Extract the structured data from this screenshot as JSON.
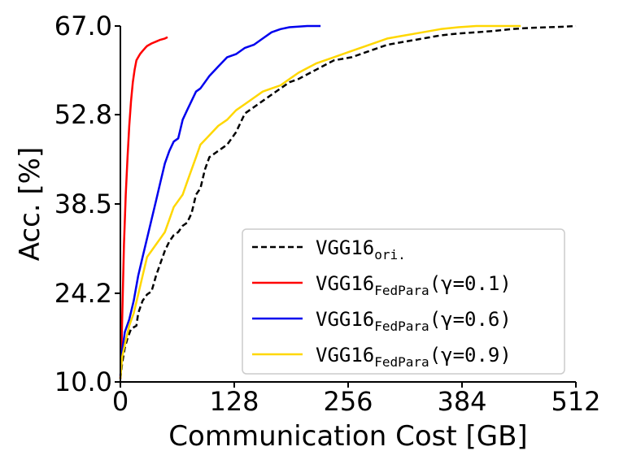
{
  "chart_data": {
    "type": "line",
    "xlabel": "Communication Cost [GB]",
    "ylabel": "Acc. [%]",
    "xlim": [
      0,
      512
    ],
    "ylim": [
      10.0,
      67.0
    ],
    "xticks": [
      "0",
      "128",
      "256",
      "384",
      "512"
    ],
    "xtick_values": [
      0,
      128,
      256,
      384,
      512
    ],
    "yticks": [
      "10.0",
      "24.2",
      "38.5",
      "52.8",
      "67.0"
    ],
    "ytick_values": [
      10.0,
      24.2,
      38.5,
      52.8,
      67.0
    ],
    "grid": false,
    "legend_position": "bottom-right",
    "series": [
      {
        "key": "ori",
        "name_main": "VGG16",
        "name_sub": "ori.",
        "name_suffix": "",
        "color": "#000000",
        "dash": "dashed",
        "points": [
          [
            0,
            10.5
          ],
          [
            2,
            13
          ],
          [
            5,
            15.5
          ],
          [
            8,
            17
          ],
          [
            12,
            18.5
          ],
          [
            18,
            19
          ],
          [
            20,
            21
          ],
          [
            25,
            23
          ],
          [
            30,
            24
          ],
          [
            35,
            24.5
          ],
          [
            40,
            27
          ],
          [
            45,
            29
          ],
          [
            50,
            31
          ],
          [
            55,
            32.5
          ],
          [
            60,
            33.5
          ],
          [
            65,
            34
          ],
          [
            70,
            35
          ],
          [
            75,
            35.5
          ],
          [
            80,
            37
          ],
          [
            85,
            40
          ],
          [
            90,
            41
          ],
          [
            95,
            44
          ],
          [
            100,
            46
          ],
          [
            110,
            47
          ],
          [
            120,
            48
          ],
          [
            130,
            50
          ],
          [
            140,
            53
          ],
          [
            150,
            54
          ],
          [
            160,
            55
          ],
          [
            170,
            56
          ],
          [
            180,
            57
          ],
          [
            190,
            58
          ],
          [
            200,
            58.5
          ],
          [
            220,
            60
          ],
          [
            240,
            61.5
          ],
          [
            260,
            62
          ],
          [
            280,
            63
          ],
          [
            300,
            64
          ],
          [
            320,
            64.5
          ],
          [
            340,
            65
          ],
          [
            360,
            65.5
          ],
          [
            380,
            65.8
          ],
          [
            400,
            66
          ],
          [
            420,
            66.2
          ],
          [
            440,
            66.5
          ],
          [
            460,
            66.7
          ],
          [
            480,
            66.8
          ],
          [
            500,
            66.9
          ],
          [
            512,
            67
          ]
        ]
      },
      {
        "key": "p01",
        "name_main": "VGG16",
        "name_sub": "FedPara",
        "name_suffix": "(γ=0.1)",
        "color": "#ff0000",
        "dash": "solid",
        "points": [
          [
            0,
            10.5
          ],
          [
            1,
            14
          ],
          [
            2,
            20
          ],
          [
            3,
            26
          ],
          [
            4,
            32
          ],
          [
            5,
            36
          ],
          [
            6,
            40
          ],
          [
            8,
            46
          ],
          [
            10,
            51
          ],
          [
            12,
            55
          ],
          [
            14,
            58
          ],
          [
            16,
            60
          ],
          [
            18,
            61.5
          ],
          [
            20,
            62
          ],
          [
            22,
            62.5
          ],
          [
            25,
            63
          ],
          [
            28,
            63.5
          ],
          [
            30,
            63.8
          ],
          [
            35,
            64.2
          ],
          [
            40,
            64.5
          ],
          [
            45,
            64.8
          ],
          [
            50,
            65
          ],
          [
            53,
            65.2
          ]
        ]
      },
      {
        "key": "p06",
        "name_main": "VGG16",
        "name_sub": "FedPara",
        "name_suffix": "(γ=0.6)",
        "color": "#0000ee",
        "dash": "solid",
        "points": [
          [
            0,
            11
          ],
          [
            1,
            13
          ],
          [
            2,
            15
          ],
          [
            5,
            18
          ],
          [
            10,
            20
          ],
          [
            15,
            23
          ],
          [
            20,
            27
          ],
          [
            25,
            30
          ],
          [
            30,
            33
          ],
          [
            35,
            36
          ],
          [
            40,
            39
          ],
          [
            45,
            42
          ],
          [
            50,
            45
          ],
          [
            55,
            47
          ],
          [
            60,
            48.5
          ],
          [
            65,
            49
          ],
          [
            70,
            52
          ],
          [
            75,
            53.5
          ],
          [
            80,
            55
          ],
          [
            85,
            56.5
          ],
          [
            90,
            57
          ],
          [
            100,
            59
          ],
          [
            110,
            60.5
          ],
          [
            120,
            62
          ],
          [
            130,
            62.5
          ],
          [
            140,
            63.5
          ],
          [
            150,
            64
          ],
          [
            160,
            65
          ],
          [
            170,
            66
          ],
          [
            180,
            66.5
          ],
          [
            190,
            66.8
          ],
          [
            200,
            66.9
          ],
          [
            210,
            67
          ],
          [
            225,
            67
          ]
        ]
      },
      {
        "key": "p09",
        "name_main": "VGG16",
        "name_sub": "FedPara",
        "name_suffix": "(γ=0.9)",
        "color": "#ffd700",
        "dash": "solid",
        "points": [
          [
            0,
            10.5
          ],
          [
            2,
            14
          ],
          [
            5,
            16
          ],
          [
            10,
            19
          ],
          [
            15,
            21
          ],
          [
            20,
            24
          ],
          [
            25,
            27
          ],
          [
            30,
            30
          ],
          [
            35,
            31
          ],
          [
            40,
            32
          ],
          [
            45,
            33
          ],
          [
            50,
            34
          ],
          [
            55,
            36
          ],
          [
            60,
            38
          ],
          [
            65,
            39
          ],
          [
            70,
            40
          ],
          [
            75,
            42
          ],
          [
            80,
            44
          ],
          [
            85,
            46
          ],
          [
            90,
            48
          ],
          [
            100,
            49.5
          ],
          [
            110,
            51
          ],
          [
            120,
            52
          ],
          [
            130,
            53.5
          ],
          [
            140,
            54.5
          ],
          [
            150,
            55.5
          ],
          [
            160,
            56.5
          ],
          [
            170,
            57
          ],
          [
            180,
            57.5
          ],
          [
            190,
            58.5
          ],
          [
            200,
            59.5
          ],
          [
            220,
            61
          ],
          [
            240,
            62
          ],
          [
            260,
            63
          ],
          [
            280,
            64
          ],
          [
            300,
            65
          ],
          [
            320,
            65.5
          ],
          [
            340,
            66
          ],
          [
            360,
            66.5
          ],
          [
            380,
            66.8
          ],
          [
            400,
            67
          ],
          [
            420,
            67
          ],
          [
            450,
            67
          ]
        ]
      }
    ]
  }
}
